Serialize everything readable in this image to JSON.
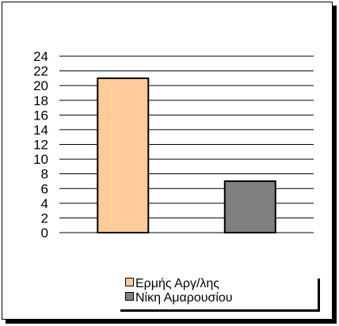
{
  "chart_data": {
    "type": "bar",
    "categories": [
      "Ερμής Αργ/λης",
      "Νίκη Αμαρουσίου"
    ],
    "values": [
      21,
      7
    ],
    "colors": [
      "#ffcc99",
      "#808080"
    ],
    "xlabel": "",
    "ylabel": "",
    "ylim": [
      0,
      24
    ],
    "yticks": [
      "0",
      "2",
      "4",
      "6",
      "8",
      "10",
      "12",
      "14",
      "16",
      "18",
      "20",
      "22",
      "24"
    ],
    "grid": true,
    "legend": "bottom"
  }
}
